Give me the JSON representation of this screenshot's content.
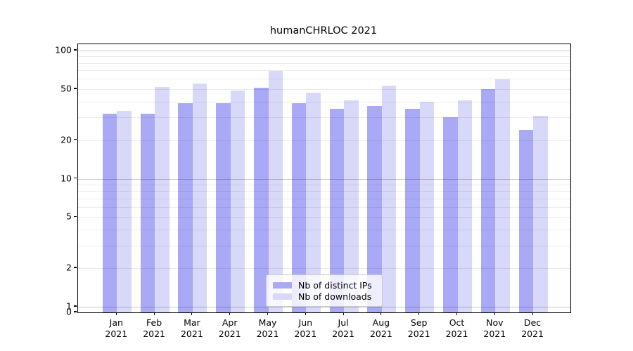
{
  "title": "humanCHRLOC 2021",
  "legend": {
    "items": [
      {
        "label": "Nb of distinct IPs",
        "color": "#a9a9f6"
      },
      {
        "label": "Nb of downloads",
        "color": "#d8d8f8"
      }
    ]
  },
  "colors": {
    "bar_dark": "#a9a9f6",
    "bar_light": "#d8d8f8",
    "spine": "#000000",
    "grid_major": "#c9c9c9",
    "grid_minor": "#ececec"
  },
  "chart_data": {
    "type": "bar",
    "title": "humanCHRLOC 2021",
    "categories": [
      "Jan",
      "Feb",
      "Mar",
      "Apr",
      "May",
      "Jun",
      "Jul",
      "Aug",
      "Sep",
      "Oct",
      "Nov",
      "Dec"
    ],
    "tick_year": "2021",
    "series": [
      {
        "name": "Nb of distinct IPs",
        "color": "#a9a9f6",
        "values": [
          32,
          32,
          39,
          39,
          51,
          39,
          35,
          37,
          35,
          30,
          50,
          24
        ]
      },
      {
        "name": "Nb of downloads",
        "color": "#d8d8f8",
        "values": [
          34,
          52,
          55,
          49,
          69,
          47,
          41,
          53,
          40,
          41,
          60,
          31
        ]
      }
    ],
    "yticks": [
      0,
      1,
      2,
      5,
      10,
      20,
      50,
      100
    ],
    "minor_gridlines": [
      2,
      3,
      4,
      5,
      6,
      7,
      8,
      9,
      20,
      30,
      40,
      50,
      60,
      70,
      80,
      90
    ],
    "major_gridlines": [
      1,
      10,
      100
    ],
    "scale": "symlog",
    "ylim": [
      0,
      110
    ],
    "grid": true,
    "legend_position": "lower center",
    "xlabel": "",
    "ylabel": ""
  }
}
